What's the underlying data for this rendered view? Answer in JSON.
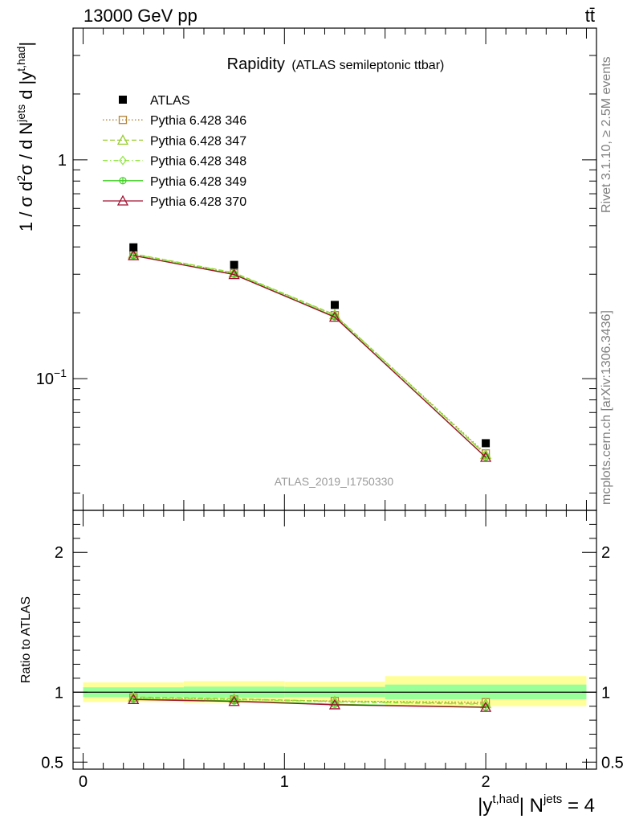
{
  "header": {
    "energy_label": "13000 GeV pp",
    "process_label": "tt̄"
  },
  "side_text": {
    "rivet": "Rivet 3.1.10, ≥ 2.5M events",
    "mcplots": "mcplots.cern.ch [arXiv:1306.3436]"
  },
  "chart_data": [
    {
      "type": "scatter",
      "title": "Rapidity",
      "subtitle": "(ATLAS semileptonic ttbar)",
      "watermark": "ATLAS_2019_I1750330",
      "ylabel": "1 / σ d²σ / d N^jets d |y^t,had|",
      "yscale": "log",
      "ylim": [
        0.025,
        4.0
      ],
      "xlim": [
        -0.05,
        2.55
      ],
      "ytick_labels": {
        "one": "1",
        "tenth_base": "10",
        "tenth_exp": "−1"
      },
      "legend_position": "top-left",
      "x": [
        0.25,
        0.75,
        1.25,
        2.0
      ],
      "bin_edges": [
        0,
        0.5,
        1.0,
        1.5,
        2.5
      ],
      "series": [
        {
          "name": "ATLAS",
          "color": "#000000",
          "marker": "square-filled",
          "values": [
            0.385,
            0.32,
            0.21,
            0.049
          ]
        },
        {
          "name": "Pythia 6.428 346",
          "color": "#b5853b",
          "marker": "square-open",
          "dash": "1.5,2.5",
          "values": [
            0.37,
            0.303,
            0.195,
            0.0455
          ]
        },
        {
          "name": "Pythia 6.428 347",
          "color": "#9acd32",
          "marker": "triangle-open",
          "dash": "6,3",
          "values": [
            0.372,
            0.305,
            0.196,
            0.045
          ]
        },
        {
          "name": "Pythia 6.428 348",
          "color": "#8ee53f",
          "marker": "diamond-open",
          "dash": "6,3,1.5,3",
          "values": [
            0.37,
            0.304,
            0.195,
            0.0448
          ]
        },
        {
          "name": "Pythia 6.428 349",
          "color": "#3ccf1f",
          "marker": "circle-cross",
          "dash": "",
          "values": [
            0.366,
            0.3,
            0.192,
            0.0438
          ]
        },
        {
          "name": "Pythia 6.428 370",
          "color": "#a01030",
          "marker": "triangle-open",
          "dash": "",
          "values": [
            0.365,
            0.299,
            0.191,
            0.0437
          ]
        }
      ]
    },
    {
      "type": "scatter",
      "ylabel": "Ratio to ATLAS",
      "xlabel": "|y^t,had| N^jets = 4",
      "ylim": [
        0.45,
        2.3
      ],
      "xlim": [
        -0.05,
        2.55
      ],
      "yticks": [
        0.5,
        1,
        2
      ],
      "ytick_labels": [
        "0.5",
        "1",
        "2"
      ],
      "xticks": [
        0,
        1,
        2
      ],
      "xtick_labels": [
        "0",
        "1",
        "2"
      ],
      "x": [
        0.25,
        0.75,
        1.25,
        2.0
      ],
      "bin_edges": [
        0,
        0.5,
        1.0,
        1.5,
        2.5
      ],
      "band_outer": {
        "color": "#ffff99",
        "low": [
          0.93,
          0.925,
          0.93,
          0.9
        ],
        "high": [
          1.07,
          1.08,
          1.075,
          1.115
        ]
      },
      "band_inner": {
        "color": "#99ff99",
        "low": [
          0.965,
          0.96,
          0.965,
          0.95
        ],
        "high": [
          1.035,
          1.04,
          1.038,
          1.055
        ]
      },
      "series": [
        {
          "name": "Pythia 6.428 346",
          "values": [
            0.962,
            0.948,
            0.937,
            0.928
          ]
        },
        {
          "name": "Pythia 6.428 347",
          "values": [
            0.966,
            0.953,
            0.935,
            0.918
          ]
        },
        {
          "name": "Pythia 6.428 348",
          "values": [
            0.961,
            0.95,
            0.93,
            0.914
          ]
        },
        {
          "name": "Pythia 6.428 349",
          "values": [
            0.952,
            0.938,
            0.914,
            0.894
          ]
        },
        {
          "name": "Pythia 6.428 370",
          "values": [
            0.948,
            0.934,
            0.91,
            0.892
          ]
        }
      ]
    }
  ]
}
